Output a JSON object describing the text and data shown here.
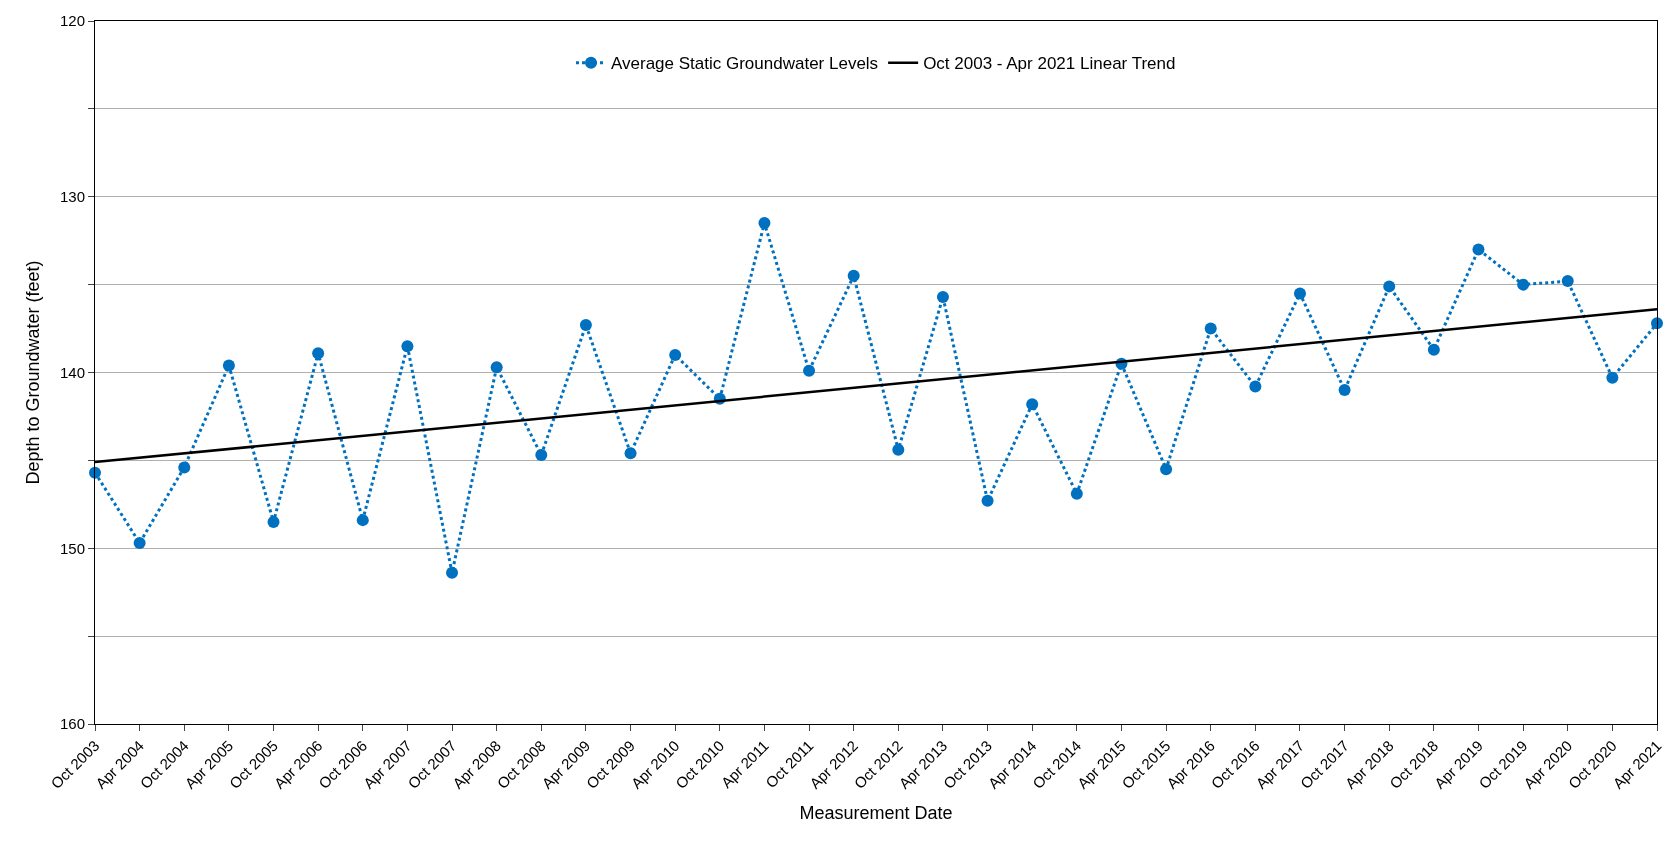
{
  "chart_data": {
    "type": "line",
    "xlabel": "Measurement Date",
    "ylabel": "Depth to Groundwater (feet)",
    "categories": [
      "Oct 2003",
      "Apr 2004",
      "Oct 2004",
      "Apr 2005",
      "Oct 2005",
      "Apr 2006",
      "Oct 2006",
      "Apr 2007",
      "Oct 2007",
      "Apr 2008",
      "Oct 2008",
      "Apr 2009",
      "Oct 2009",
      "Apr 2010",
      "Oct 2010",
      "Apr 2011",
      "Oct 2011",
      "Apr 2012",
      "Oct 2012",
      "Apr 2013",
      "Oct 2013",
      "Apr 2014",
      "Oct 2014",
      "Apr 2015",
      "Oct 2015",
      "Apr 2016",
      "Oct 2016",
      "Apr 2017",
      "Oct 2017",
      "Apr 2018",
      "Oct 2018",
      "Apr 2019",
      "Oct 2019",
      "Apr 2020",
      "Oct 2020",
      "Apr 2021"
    ],
    "series": [
      {
        "name": "Average Static Groundwater Levels",
        "color": "#0070c0",
        "marker": "circle",
        "line_style": "dotted",
        "values": [
          145.7,
          149.7,
          145.4,
          139.6,
          148.5,
          138.9,
          148.4,
          138.5,
          151.4,
          139.7,
          144.7,
          137.3,
          144.6,
          139.0,
          141.5,
          131.5,
          139.9,
          134.5,
          144.4,
          135.7,
          147.3,
          141.8,
          146.9,
          139.5,
          145.5,
          137.5,
          140.8,
          135.5,
          141.0,
          135.1,
          138.7,
          133.0,
          135.0,
          134.8,
          140.3,
          137.2
        ]
      },
      {
        "name": "Oct 2003 - Apr 2021 Linear Trend",
        "color": "#000000",
        "marker": "none",
        "line_style": "solid",
        "x": [
          "Oct 2003",
          "Apr 2021"
        ],
        "values": [
          145.1,
          136.4
        ]
      }
    ],
    "ylim": [
      160,
      120
    ],
    "yticks": [
      120,
      {
        "value": 125,
        "label": null
      },
      130,
      {
        "value": 135,
        "label": null
      },
      140,
      {
        "value": 145,
        "label": null
      },
      150,
      {
        "value": 155,
        "label": null
      },
      160
    ],
    "grid": "y",
    "legend": "top"
  }
}
